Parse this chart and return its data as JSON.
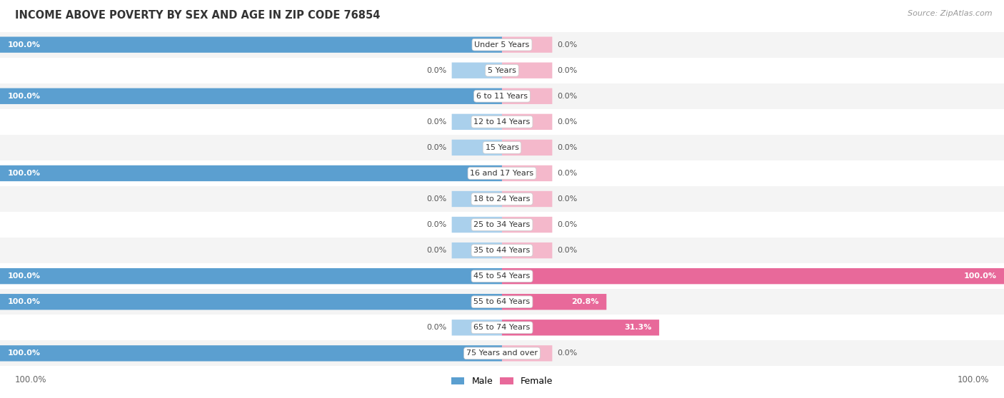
{
  "title": "INCOME ABOVE POVERTY BY SEX AND AGE IN ZIP CODE 76854",
  "source": "Source: ZipAtlas.com",
  "categories": [
    "Under 5 Years",
    "5 Years",
    "6 to 11 Years",
    "12 to 14 Years",
    "15 Years",
    "16 and 17 Years",
    "18 to 24 Years",
    "25 to 34 Years",
    "35 to 44 Years",
    "45 to 54 Years",
    "55 to 64 Years",
    "65 to 74 Years",
    "75 Years and over"
  ],
  "male_values": [
    100.0,
    0.0,
    100.0,
    0.0,
    0.0,
    100.0,
    0.0,
    0.0,
    0.0,
    100.0,
    100.0,
    0.0,
    100.0
  ],
  "female_values": [
    0.0,
    0.0,
    0.0,
    0.0,
    0.0,
    0.0,
    0.0,
    0.0,
    0.0,
    100.0,
    20.8,
    31.3,
    0.0
  ],
  "male_color_full": "#5b9fd0",
  "male_color_light": "#aad0ec",
  "female_color_full": "#e8699a",
  "female_color_light": "#f4b8cb",
  "row_bg_odd": "#f4f4f4",
  "row_bg_even": "#ffffff",
  "label_bg": "#ffffff",
  "max_val": 100.0
}
